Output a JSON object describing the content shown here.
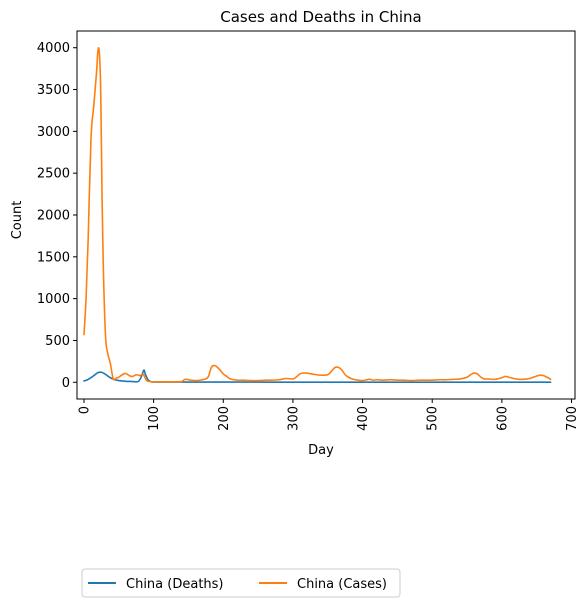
{
  "chart_data": {
    "type": "line",
    "title": "Cases and Deaths in China",
    "xlabel": "Day",
    "ylabel": "Count",
    "xlim": [
      -10,
      705
    ],
    "ylim": [
      -200,
      4200
    ],
    "xticks": [
      0,
      100,
      200,
      300,
      400,
      500,
      600,
      700
    ],
    "yticks": [
      0,
      500,
      1000,
      1500,
      2000,
      2500,
      3000,
      3500,
      4000
    ],
    "grid": false,
    "legend_position": "bottom-left",
    "series": [
      {
        "name": "China (Deaths)",
        "color": "#1f77b4",
        "x": [
          0,
          5,
          10,
          15,
          20,
          25,
          30,
          35,
          40,
          45,
          50,
          60,
          70,
          78,
          82,
          86,
          88,
          92,
          96,
          100,
          120,
          150,
          200,
          250,
          300,
          350,
          400,
          450,
          500,
          550,
          600,
          650,
          670
        ],
        "y": [
          15,
          30,
          55,
          85,
          115,
          120,
          100,
          70,
          45,
          30,
          20,
          12,
          8,
          10,
          60,
          145,
          100,
          30,
          8,
          3,
          2,
          2,
          3,
          2,
          1,
          1,
          1,
          1,
          1,
          1,
          1,
          1,
          1
        ]
      },
      {
        "name": "China (Cases)",
        "color": "#ff7f0e",
        "x": [
          0,
          3,
          6,
          10,
          14,
          18,
          20,
          22,
          24,
          26,
          28,
          31,
          34,
          38,
          42,
          46,
          50,
          55,
          60,
          65,
          70,
          75,
          80,
          85,
          90,
          95,
          100,
          110,
          120,
          130,
          140,
          145,
          150,
          160,
          170,
          178,
          183,
          188,
          192,
          196,
          200,
          205,
          210,
          220,
          230,
          240,
          250,
          260,
          270,
          280,
          290,
          300,
          305,
          310,
          315,
          320,
          330,
          340,
          350,
          355,
          360,
          365,
          370,
          375,
          380,
          385,
          390,
          400,
          410,
          415,
          420,
          430,
          440,
          450,
          460,
          470,
          480,
          490,
          500,
          510,
          520,
          530,
          540,
          550,
          555,
          560,
          565,
          570,
          575,
          580,
          590,
          600,
          605,
          610,
          620,
          630,
          640,
          650,
          655,
          660,
          665,
          670
        ],
        "y": [
          570,
          1000,
          1700,
          2900,
          3300,
          3700,
          3960,
          3950,
          3500,
          2200,
          1300,
          550,
          350,
          220,
          40,
          50,
          60,
          90,
          105,
          80,
          70,
          90,
          80,
          95,
          20,
          10,
          5,
          5,
          5,
          5,
          8,
          35,
          30,
          20,
          30,
          60,
          180,
          200,
          175,
          140,
          100,
          70,
          40,
          25,
          25,
          20,
          20,
          25,
          25,
          30,
          45,
          40,
          65,
          100,
          110,
          110,
          95,
          85,
          90,
          130,
          175,
          180,
          150,
          90,
          60,
          40,
          30,
          20,
          35,
          25,
          30,
          25,
          30,
          25,
          25,
          20,
          25,
          25,
          25,
          30,
          30,
          35,
          40,
          60,
          90,
          110,
          100,
          60,
          40,
          40,
          35,
          55,
          70,
          60,
          40,
          35,
          45,
          75,
          85,
          80,
          60,
          35
        ]
      }
    ]
  }
}
